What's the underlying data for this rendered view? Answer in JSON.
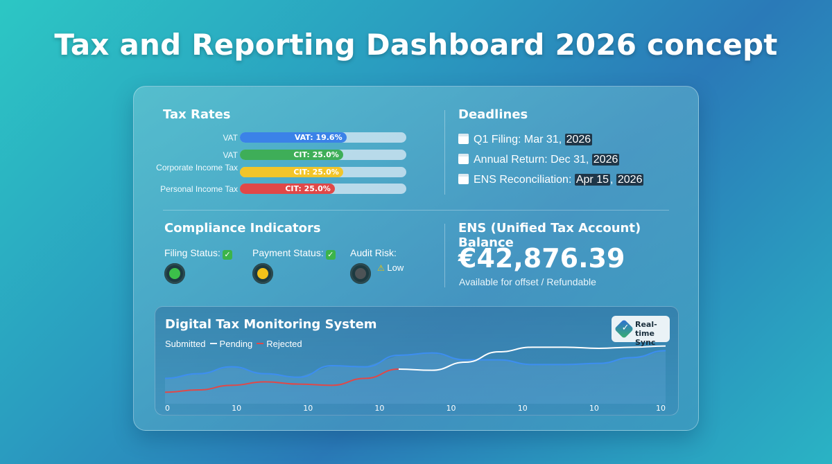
{
  "page": {
    "title": "Tax and Reporting Dashboard 2026 concept"
  },
  "tax_rates": {
    "title": "Tax Rates",
    "rows": [
      {
        "label": "VAT",
        "bar_text": "VAT: 19.6%",
        "fill_fraction": 0.64,
        "color": "#3b82e8"
      },
      {
        "label": "VAT",
        "bar_text": "CIT: 25.0%",
        "fill_fraction": 0.62,
        "color": "#3eae58"
      },
      {
        "label": "Corporate Income Tax",
        "bar_text": "CIT: 25.0%",
        "fill_fraction": 0.62,
        "color": "#f2c52a"
      },
      {
        "label": "Personal Income Tax",
        "bar_text": "CIT: 25.0%",
        "fill_fraction": 0.57,
        "color": "#e04848"
      }
    ]
  },
  "deadlines": {
    "title": "Deadlines",
    "items": [
      {
        "icon": "calendar-icon",
        "text": "Q1 Filing: Mar 31, ",
        "highlight": "2026"
      },
      {
        "icon": "calendar-icon",
        "text": "Annual Return: Dec 31, ",
        "highlight": "2026"
      },
      {
        "icon": "calendar-icon",
        "text": "ENS Reconciliation: ",
        "highlight_date": "Apr 15",
        "sep": ", ",
        "highlight": "2026"
      }
    ]
  },
  "compliance": {
    "title": "Compliance Indicators",
    "filing_status": "Filing Status:",
    "payment_status": "Payment Status:",
    "audit_risk": "Audit Risk:",
    "audit_level": "Low",
    "check_glyph": "✓",
    "warn_glyph": "⚠",
    "colors": {
      "green": "#3cc04a",
      "yellow": "#f2c21a",
      "gray": "#4d5356"
    }
  },
  "ens": {
    "title": "ENS (Unified Tax Account) Balance",
    "balance": "€42,876.39",
    "subtitle": "Available for offset / Refundable"
  },
  "monitoring": {
    "title": "Digital Tax Monitoring System",
    "legend": {
      "submitted": "Submitted",
      "pending": "Pending",
      "rejected": "Rejected"
    },
    "sync_line1": "Real-time",
    "sync_line2": "Sync"
  },
  "chart_data": {
    "type": "line",
    "x_tick_labels": [
      "0",
      "10",
      "10",
      "10",
      "10",
      "10",
      "10",
      "10"
    ],
    "series": [
      {
        "name": "Submitted",
        "color": "#3d8ef0",
        "values": [
          22,
          26,
          32,
          26,
          23,
          33,
          32,
          42,
          44,
          38,
          38,
          34,
          34,
          35,
          40,
          46
        ]
      },
      {
        "name": "Pending",
        "color": "#ffffff",
        "values": [
          null,
          null,
          null,
          null,
          null,
          null,
          null,
          30,
          29,
          36,
          45,
          49,
          49,
          48,
          49,
          50
        ]
      },
      {
        "name": "Rejected",
        "color": "#e04848",
        "values": [
          10,
          12,
          16,
          19,
          17,
          16,
          22,
          30,
          null,
          null,
          null,
          null,
          null,
          null,
          null,
          null
        ]
      }
    ],
    "ylim": [
      0,
      60
    ]
  }
}
